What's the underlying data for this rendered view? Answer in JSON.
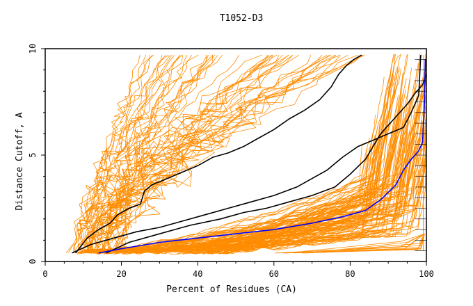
{
  "chart_data": {
    "type": "line",
    "title": "T1052-D3",
    "xlabel": "Percent of Residues (CA)",
    "ylabel": "Distance Cutoff, A",
    "xlim": [
      0,
      100
    ],
    "ylim": [
      0,
      10
    ],
    "xticks": [
      0,
      20,
      40,
      60,
      80,
      100
    ],
    "yticks": [
      0,
      5,
      10
    ],
    "grid": "horizontal lines at y = 0.5 intervals near right edge",
    "colors": {
      "background": "#ffffff",
      "orange": "#ff8c00",
      "black": "#000000",
      "blue": "#0000ff"
    },
    "highlighted_series": [
      {
        "name": "black-curve-1",
        "color": "#000000",
        "x": [
          8,
          11,
          14,
          17,
          19,
          22,
          25,
          26,
          28,
          32,
          36,
          40,
          44,
          48,
          52,
          56,
          60,
          64,
          68,
          72,
          75,
          77,
          79,
          81,
          83
        ],
        "y": [
          0.4,
          1.1,
          1.5,
          1.8,
          2.2,
          2.5,
          2.7,
          3.3,
          3.6,
          3.9,
          4.2,
          4.5,
          4.9,
          5.1,
          5.4,
          5.8,
          6.2,
          6.7,
          7.1,
          7.6,
          8.2,
          8.8,
          9.2,
          9.5,
          9.7
        ]
      },
      {
        "name": "black-curve-2",
        "color": "#000000",
        "x": [
          7,
          12,
          18,
          24,
          30,
          36,
          42,
          48,
          54,
          60,
          66,
          70,
          74,
          78,
          82,
          86,
          90,
          94,
          96,
          98,
          98.5
        ],
        "y": [
          0.4,
          0.8,
          1.1,
          1.4,
          1.6,
          1.9,
          2.2,
          2.5,
          2.8,
          3.1,
          3.5,
          3.9,
          4.3,
          4.9,
          5.4,
          5.7,
          6.0,
          6.3,
          7.0,
          7.8,
          9.7
        ]
      },
      {
        "name": "black-curve-3",
        "color": "#000000",
        "x": [
          16,
          22,
          30,
          38,
          46,
          52,
          58,
          64,
          70,
          76,
          80,
          84,
          88,
          92,
          95,
          97,
          99,
          100
        ],
        "y": [
          0.4,
          0.9,
          1.3,
          1.7,
          2.0,
          2.3,
          2.5,
          2.8,
          3.1,
          3.5,
          4.1,
          4.8,
          6.0,
          6.8,
          7.4,
          7.9,
          8.3,
          8.8
        ]
      },
      {
        "name": "blue-curve",
        "color": "#0000ff",
        "x": [
          14,
          20,
          30,
          40,
          50,
          60,
          70,
          78,
          84,
          88,
          92,
          94,
          96,
          98,
          99,
          99.5,
          99.7
        ],
        "y": [
          0.4,
          0.6,
          0.9,
          1.1,
          1.3,
          1.5,
          1.8,
          2.1,
          2.4,
          2.9,
          3.6,
          4.3,
          4.8,
          5.2,
          5.6,
          7.5,
          9.5
        ]
      }
    ]
  }
}
